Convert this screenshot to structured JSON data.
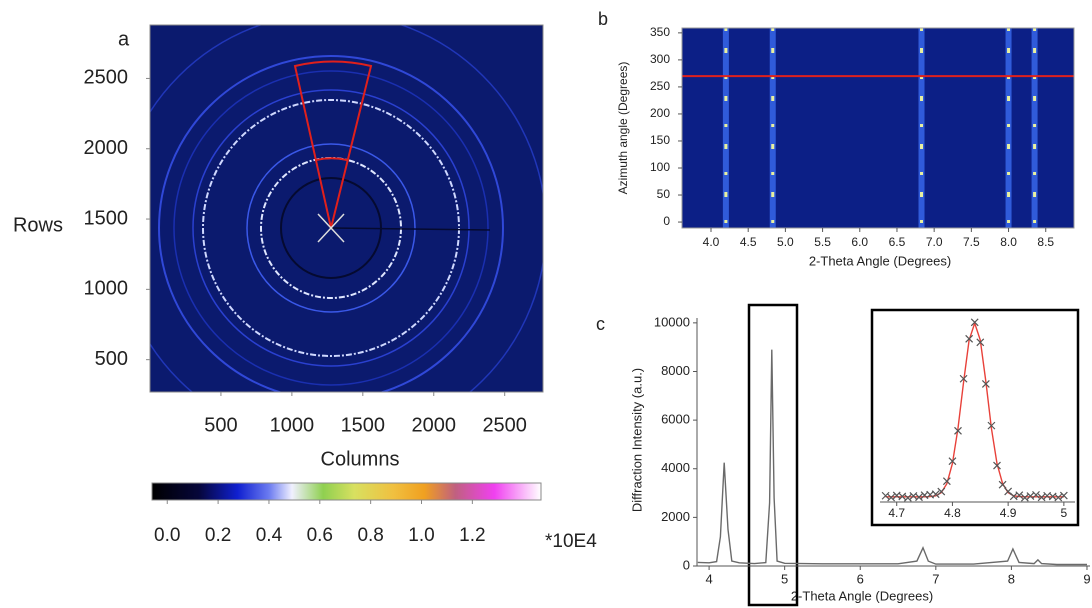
{
  "chart_data": [
    {
      "type": "image",
      "panel_label": "a",
      "xlabel": "Columns",
      "ylabel": "Rows",
      "xlim": [
        0,
        2770
      ],
      "ylim": [
        270,
        2880
      ],
      "xticks": [
        500,
        1000,
        1500,
        2000,
        2500
      ],
      "yticks": [
        500,
        1000,
        1500,
        2000,
        2500
      ],
      "colorbar": {
        "clim": [
          -0.06,
          1.47
        ],
        "unit_label": "*10E4",
        "ticks": [
          {
            "value": 0,
            "label": "0.0"
          },
          0.2,
          0.4,
          0.6,
          0.8,
          {
            "value": 1,
            "label": "1.0"
          },
          1.2
        ]
      }
    },
    {
      "type": "heatmap",
      "panel_label": "b",
      "xlabel": "2-Theta Angle (Degrees)",
      "ylabel": "Azimuth angle (Degrees)",
      "xlim": [
        3.61,
        8.88
      ],
      "ylim": [
        -11,
        359
      ],
      "xticks": [
        {
          "value": 4,
          "label": "4.0"
        },
        4.5,
        {
          "value": 5,
          "label": "5.0"
        },
        5.5,
        {
          "value": 6,
          "label": "6.0"
        },
        6.5,
        {
          "value": 7,
          "label": "7.0"
        },
        7.5,
        {
          "value": 8,
          "label": "8.0"
        },
        8.5
      ],
      "yticks": [
        0,
        50,
        100,
        150,
        200,
        250,
        300,
        350
      ],
      "streaks_x": [
        4.2,
        4.83,
        6.83,
        8.0,
        8.35
      ],
      "highlight_y": 270,
      "highlight_color": "#e0201c"
    },
    {
      "type": "line",
      "panel_label": "c",
      "xlabel": "2-Theta Angle (Degrees)",
      "ylabel": "Diffraction Intensity (a.u.)",
      "xlim": [
        3.84,
        9.04
      ],
      "ylim": [
        0,
        10200
      ],
      "xticks": [
        4,
        5,
        6,
        7,
        8,
        9
      ],
      "yticks": [
        0,
        2000,
        4000,
        6000,
        8000,
        10000
      ],
      "x": [
        3.85,
        4.0,
        4.1,
        4.15,
        4.2,
        4.25,
        4.3,
        4.4,
        4.6,
        4.75,
        4.8,
        4.83,
        4.86,
        4.9,
        5.0,
        5.5,
        6.0,
        6.5,
        6.75,
        6.83,
        6.9,
        7.0,
        7.5,
        7.95,
        8.02,
        8.1,
        8.3,
        8.35,
        8.4,
        8.6,
        9.0
      ],
      "series": [
        {
          "color": "#6a6a6a",
          "values": [
            150,
            130,
            180,
            1200,
            4250,
            1500,
            200,
            130,
            100,
            140,
            2600,
            8900,
            2800,
            200,
            110,
            90,
            90,
            90,
            200,
            750,
            200,
            80,
            80,
            200,
            700,
            150,
            100,
            250,
            100,
            60,
            60
          ]
        }
      ]
    },
    {
      "type": "line",
      "xlim": [
        4.67,
        5.02
      ],
      "ylim": [
        -300,
        10300
      ],
      "xticks": [
        4.7,
        4.8,
        4.9,
        5
      ],
      "x": [
        4.68,
        4.69,
        4.7,
        4.71,
        4.72,
        4.73,
        4.74,
        4.75,
        4.76,
        4.77,
        4.78,
        4.79,
        4.8,
        4.81,
        4.82,
        4.83,
        4.84,
        4.85,
        4.86,
        4.87,
        4.88,
        4.89,
        4.9,
        4.91,
        4.92,
        4.93,
        4.94,
        4.95,
        4.96,
        4.97,
        4.98,
        4.99,
        5.0
      ],
      "series": [
        {
          "color": "#e8413a",
          "marker": "none",
          "values": [
            0,
            0,
            0,
            0,
            0,
            0,
            0,
            0,
            13,
            60,
            240,
            760,
            1910,
            3950,
            6620,
            9020,
            10000,
            9020,
            6620,
            3950,
            1910,
            760,
            240,
            60,
            13,
            0,
            0,
            0,
            0,
            0,
            0,
            0,
            0
          ]
        },
        {
          "color": "#555555",
          "marker": "x",
          "values": [
            60,
            -40,
            80,
            20,
            -60,
            50,
            -20,
            90,
            120,
            150,
            300,
            900,
            2050,
            3800,
            6800,
            9100,
            10050,
            8900,
            6500,
            4100,
            1800,
            700,
            310,
            30,
            90,
            -50,
            40,
            110,
            -30,
            60,
            20,
            -40,
            70
          ]
        }
      ]
    }
  ]
}
